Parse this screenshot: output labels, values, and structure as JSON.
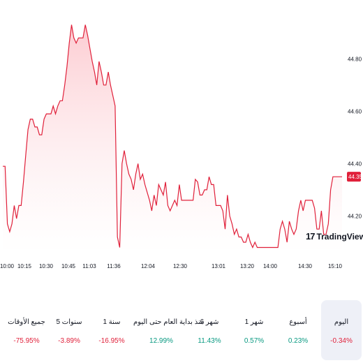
{
  "chart_data": {
    "type": "area",
    "x_ticks": [
      "10:00",
      "10:15",
      "10:30",
      "10:45",
      "11:03",
      "11:36",
      "12:04",
      "12:30",
      "13:01",
      "13:20",
      "14:00",
      "14:30",
      "15:10"
    ],
    "y_ticks": [
      "44.80",
      "44.60",
      "44.40",
      "44.20"
    ],
    "ylim": [
      44.06,
      44.95
    ],
    "current_price": "44.35",
    "values": [
      44.39,
      44.39,
      44.17,
      44.14,
      44.17,
      44.24,
      44.19,
      44.24,
      44.24,
      44.33,
      44.43,
      44.53,
      44.57,
      44.57,
      44.54,
      44.54,
      44.51,
      44.51,
      44.57,
      44.59,
      44.59,
      44.59,
      44.62,
      44.59,
      44.62,
      44.64,
      44.64,
      44.7,
      44.77,
      44.86,
      44.93,
      44.88,
      44.86,
      44.88,
      44.88,
      44.88,
      44.93,
      44.89,
      44.84,
      44.79,
      44.75,
      44.7,
      44.79,
      44.75,
      44.7,
      44.7,
      44.75,
      44.7,
      44.66,
      44.62,
      44.12,
      44.08,
      44.4,
      44.45,
      44.4,
      44.36,
      44.34,
      44.3,
      44.36,
      44.4,
      44.34,
      44.36,
      44.32,
      44.29,
      44.26,
      44.22,
      44.28,
      44.24,
      44.32,
      44.3,
      44.28,
      44.33,
      44.24,
      44.22,
      44.24,
      44.26,
      44.24,
      44.32,
      44.26,
      44.26,
      44.26,
      44.26,
      44.26,
      44.26,
      44.34,
      44.33,
      44.28,
      44.28,
      44.3,
      44.3,
      44.35,
      44.32,
      44.32,
      44.24,
      44.24,
      44.24,
      44.22,
      44.15,
      44.28,
      44.2,
      44.17,
      44.13,
      44.15,
      44.12,
      44.12,
      44.1,
      44.1,
      44.13,
      44.1,
      44.08,
      44.1,
      44.08,
      44.08,
      44.08,
      44.08,
      44.08,
      44.08,
      44.08,
      44.08,
      44.08,
      44.08,
      44.15,
      44.18,
      44.15,
      44.1,
      44.18,
      44.15,
      44.13,
      44.15,
      44.22,
      44.26,
      44.22,
      44.26,
      44.26,
      44.26,
      44.26,
      44.23,
      44.15,
      44.15,
      44.22,
      44.13,
      44.13,
      44.17,
      44.3,
      44.35,
      44.35,
      44.35,
      44.35,
      44.35
    ],
    "line_color": "#e0203a",
    "fill_top_color": "#fcc7cd",
    "fill_bottom_color": "#ffffff"
  },
  "watermark": {
    "logo": "17",
    "text": "TradingView"
  },
  "periods": [
    {
      "label": "اليوم",
      "value": "-0.34%",
      "trend": "negative",
      "active": true
    },
    {
      "label": "أسبوع",
      "value": "0.23%",
      "trend": "positive",
      "active": false
    },
    {
      "label": "1 شهر",
      "value": "0.57%",
      "trend": "positive",
      "active": false
    },
    {
      "label": "6 شهر",
      "value": "11.43%",
      "trend": "positive",
      "active": false
    },
    {
      "label": "منذ بداية العام حتى اليوم",
      "value": "12.99%",
      "trend": "positive",
      "active": false
    },
    {
      "label": "1 سنة",
      "value": "-16.95%",
      "trend": "negative",
      "active": false
    },
    {
      "label": "5 سنوات",
      "value": "-3.89%",
      "trend": "negative",
      "active": false
    },
    {
      "label": "جميع الأوقات",
      "value": "-75.95%",
      "trend": "negative",
      "active": false
    }
  ]
}
